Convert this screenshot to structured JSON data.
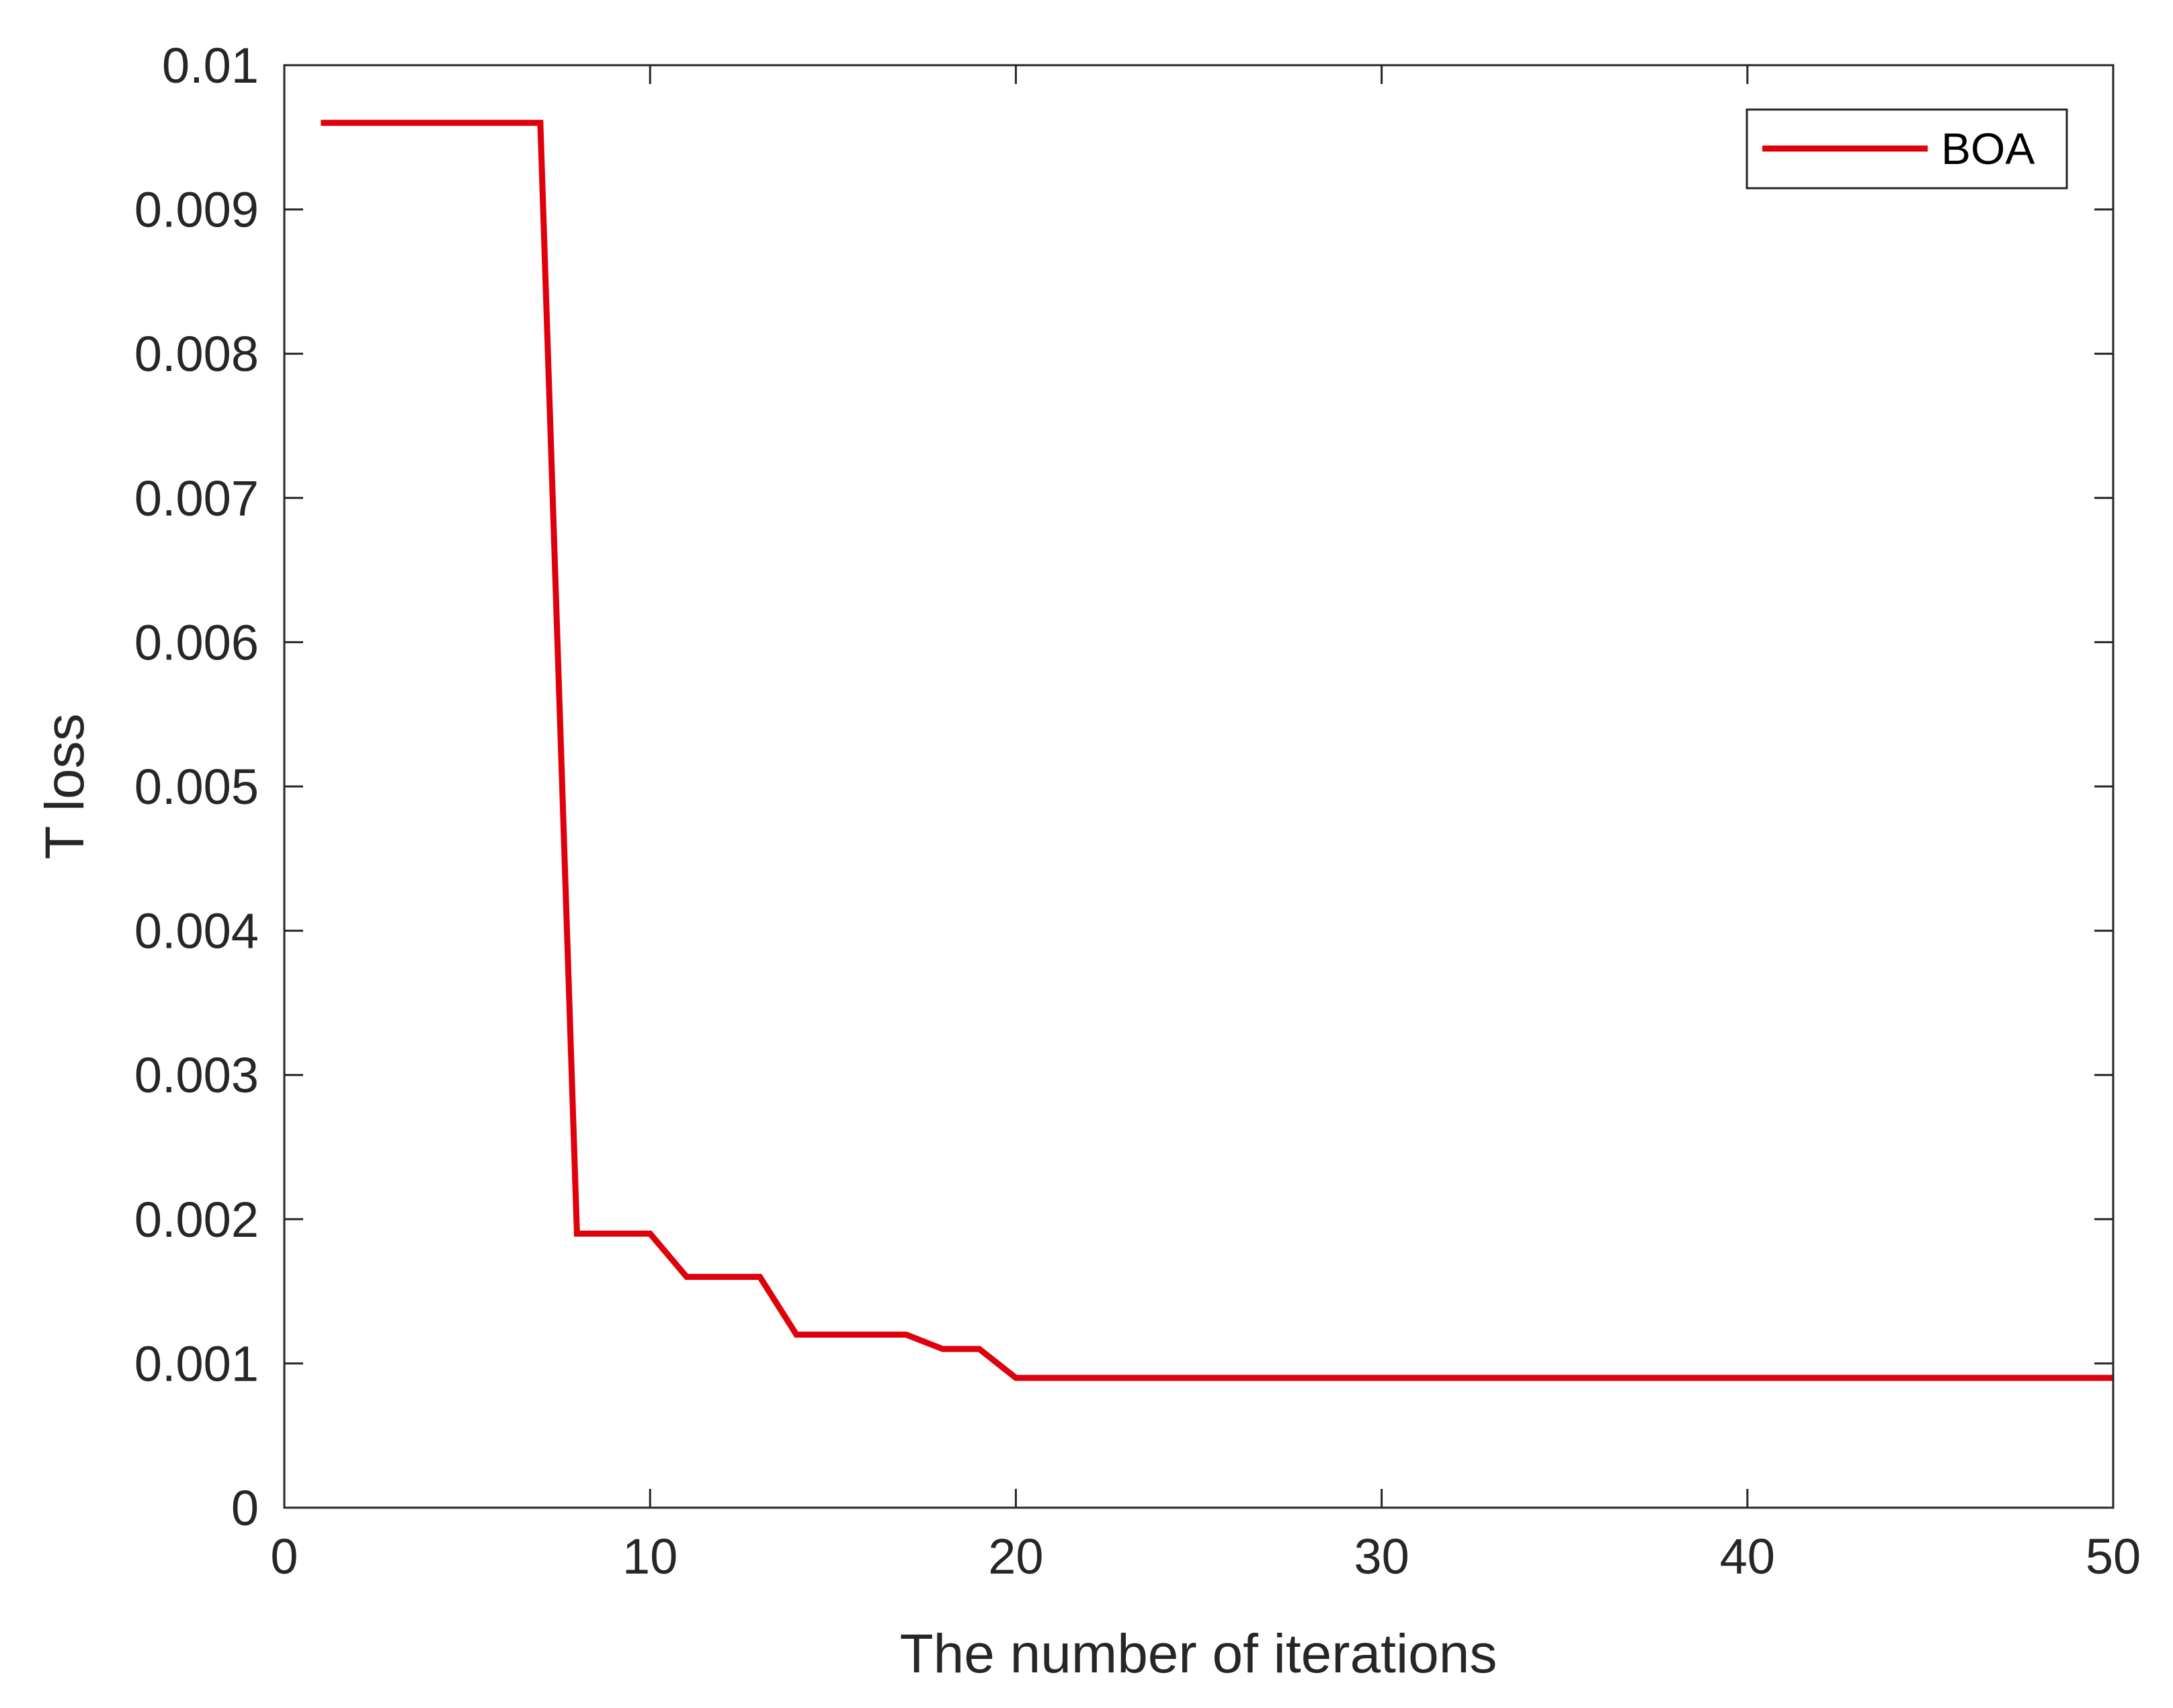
{
  "chart_data": {
    "type": "line",
    "title": "",
    "xlabel": "The number of iterations",
    "ylabel": "T loss",
    "xlim": [
      0,
      50
    ],
    "ylim": [
      0,
      0.01
    ],
    "xticks": [
      0,
      10,
      20,
      30,
      40,
      50
    ],
    "xtick_labels": [
      "0",
      "10",
      "20",
      "30",
      "40",
      "50"
    ],
    "yticks": [
      0,
      0.001,
      0.002,
      0.003,
      0.004,
      0.005,
      0.006,
      0.007,
      0.008,
      0.009,
      0.01
    ],
    "ytick_labels": [
      "0",
      "0.001",
      "0.002",
      "0.003",
      "0.004",
      "0.005",
      "0.006",
      "0.007",
      "0.008",
      "0.009",
      "0.01"
    ],
    "grid": false,
    "legend_position": "top-right",
    "series": [
      {
        "name": "BOA",
        "color": "#e0000b",
        "x": [
          1,
          2,
          3,
          4,
          5,
          6,
          7,
          8,
          9,
          10,
          11,
          12,
          13,
          14,
          15,
          16,
          17,
          18,
          19,
          20,
          21,
          22,
          23,
          24,
          25,
          26,
          27,
          28,
          29,
          30,
          31,
          32,
          33,
          34,
          35,
          36,
          37,
          38,
          39,
          40,
          41,
          42,
          43,
          44,
          45,
          46,
          47,
          48,
          49,
          50
        ],
        "y": [
          0.0096,
          0.0096,
          0.0096,
          0.0096,
          0.0096,
          0.0096,
          0.0096,
          0.0019,
          0.0019,
          0.0019,
          0.0016,
          0.0016,
          0.0016,
          0.0012,
          0.0012,
          0.0012,
          0.0012,
          0.0011,
          0.0011,
          0.0009,
          0.0009,
          0.0009,
          0.0009,
          0.0009,
          0.0009,
          0.0009,
          0.0009,
          0.0009,
          0.0009,
          0.0009,
          0.0009,
          0.0009,
          0.0009,
          0.0009,
          0.0009,
          0.0009,
          0.0009,
          0.0009,
          0.0009,
          0.0009,
          0.0009,
          0.0009,
          0.0009,
          0.0009,
          0.0009,
          0.0009,
          0.0009,
          0.0009,
          0.0009,
          0.0009
        ]
      }
    ]
  }
}
